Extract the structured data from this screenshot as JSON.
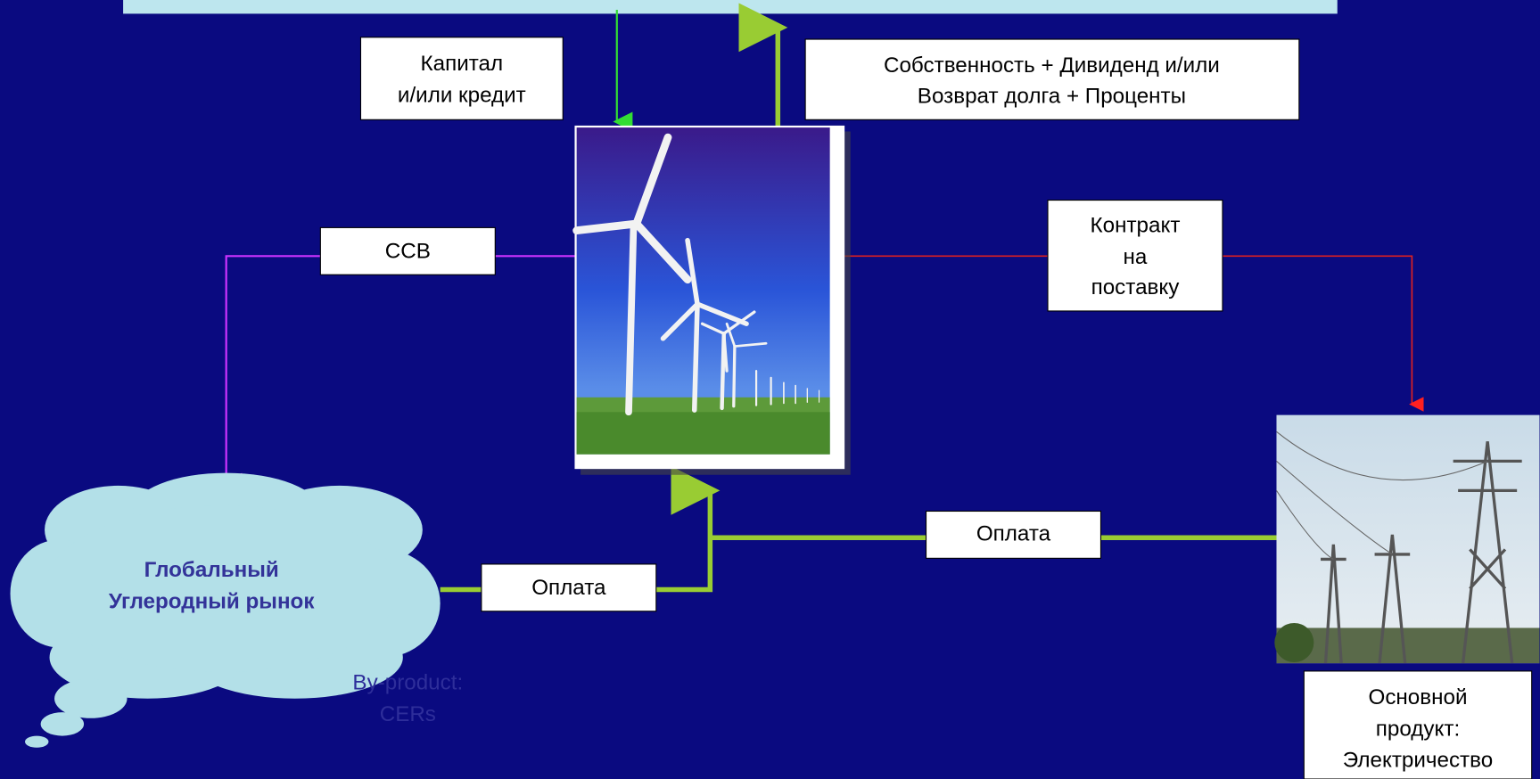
{
  "nodes": {
    "capital": {
      "lines": [
        "Капитал",
        "и/или кредит"
      ]
    },
    "returns": {
      "lines": [
        "Собственность + Дивиденд и/или",
        "Возврат долга + Проценты"
      ]
    },
    "ccb": {
      "lines": [
        "CCB"
      ]
    },
    "contract": {
      "lines": [
        "Контракт",
        "на",
        "поставку"
      ]
    },
    "payment_carbon": {
      "lines": [
        "Оплата"
      ]
    },
    "payment_power": {
      "lines": [
        "Оплата"
      ]
    },
    "carbon_market": {
      "lines": [
        "Глобальный",
        "Углеродный рынок"
      ]
    },
    "by_product": {
      "lines": [
        "By-product:",
        "CERs"
      ]
    },
    "main_product": {
      "lines": [
        "Основной",
        "продукт:",
        "Электричество"
      ]
    }
  }
}
